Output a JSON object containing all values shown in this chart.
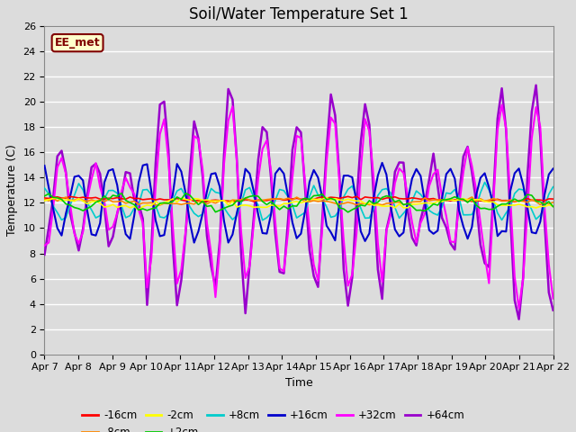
{
  "title": "Soil/Water Temperature Set 1",
  "xlabel": "Time",
  "ylabel": "Temperature (C)",
  "ylim": [
    0,
    26
  ],
  "yticks": [
    0,
    2,
    4,
    6,
    8,
    10,
    12,
    14,
    16,
    18,
    20,
    22,
    24,
    26
  ],
  "background_color": "#dcdcdc",
  "annotation_text": "EE_met",
  "annotation_bg": "#ffffcc",
  "annotation_border": "#800000",
  "series_colors": {
    "-16cm": "#ff0000",
    "-8cm": "#ff8800",
    "-2cm": "#ffff00",
    "+2cm": "#00cc00",
    "+8cm": "#00cccc",
    "+16cm": "#0000cc",
    "+32cm": "#ff00ff",
    "+64cm": "#9900cc"
  },
  "x_tick_labels": [
    "Apr 7",
    "Apr 8",
    "Apr 9",
    "Apr 10",
    "Apr 11",
    "Apr 12",
    "Apr 13",
    "Apr 14",
    "Apr 15",
    "Apr 16",
    "Apr 17",
    "Apr 18",
    "Apr 19",
    "Apr 20",
    "Apr 21",
    "Apr 22"
  ],
  "title_fontsize": 12,
  "axis_fontsize": 9,
  "tick_fontsize": 8
}
